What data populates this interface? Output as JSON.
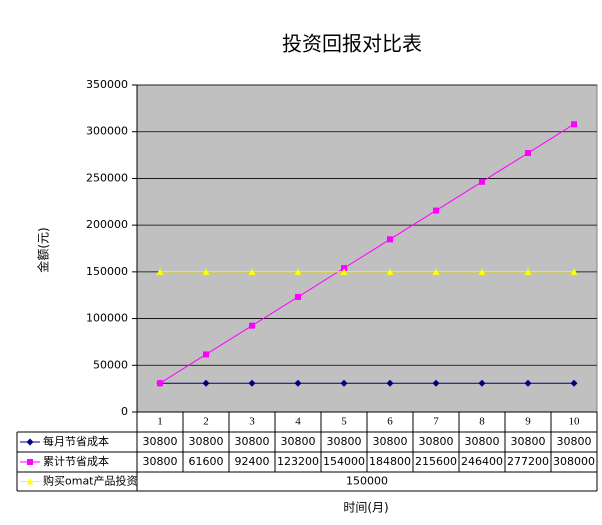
{
  "chart_data": {
    "type": "line",
    "title": "投资回报对比表",
    "y_label": "金额(元)",
    "x_label": "时间(月)",
    "categories": [
      "1",
      "2",
      "3",
      "4",
      "5",
      "6",
      "7",
      "8",
      "9",
      "10"
    ],
    "ylim": [
      0,
      350000
    ],
    "yticks": [
      0,
      50000,
      100000,
      150000,
      200000,
      250000,
      300000,
      350000
    ],
    "grid": true,
    "series": [
      {
        "name": "每月节省成本",
        "color": "#000080",
        "marker": "diamond",
        "values": [
          30800,
          30800,
          30800,
          30800,
          30800,
          30800,
          30800,
          30800,
          30800,
          30800
        ]
      },
      {
        "name": "累计节省成本",
        "color": "#ff00ff",
        "marker": "square",
        "values": [
          30800,
          61600,
          92400,
          123200,
          154000,
          184800,
          215600,
          246400,
          277200,
          308000
        ]
      },
      {
        "name": "购买omat产品投资",
        "color": "#ffff00",
        "marker": "triangle",
        "values": [
          150000,
          150000,
          150000,
          150000,
          150000,
          150000,
          150000,
          150000,
          150000,
          150000
        ]
      }
    ]
  }
}
